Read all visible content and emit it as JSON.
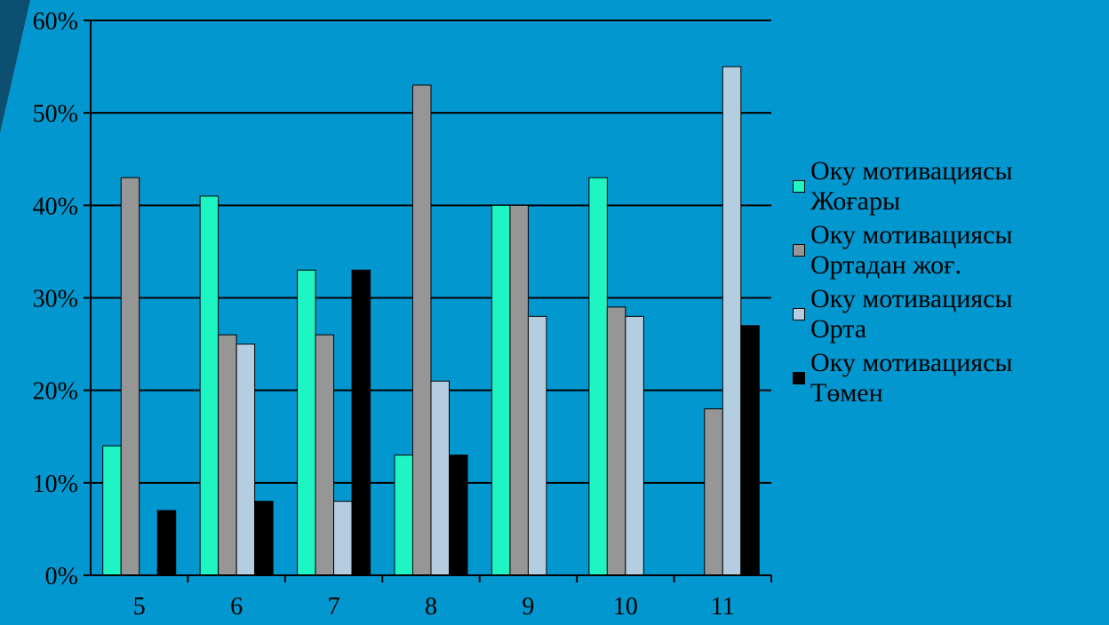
{
  "chart_data": {
    "type": "bar",
    "categories": [
      "5",
      "6",
      "7",
      "8",
      "9",
      "10",
      "11"
    ],
    "series": [
      {
        "name": "Оку мотивациясы Жоғары",
        "line1": "Оку мотивациясы",
        "line2": "Жоғары",
        "color": "#1ff5c3",
        "values": [
          14,
          41,
          33,
          13,
          40,
          43,
          0
        ]
      },
      {
        "name": "Оку мотивациясы Ортадан жоғ.",
        "line1": "Оку мотивациясы",
        "line2": "Ортадан жоғ.",
        "color": "#969696",
        "values": [
          43,
          26,
          26,
          53,
          40,
          29,
          18
        ]
      },
      {
        "name": "Оку мотивациясы Орта",
        "line1": "Оку мотивациясы",
        "line2": "Орта",
        "color": "#b4cde1",
        "values": [
          0,
          25,
          8,
          21,
          28,
          28,
          55
        ]
      },
      {
        "name": "Оку мотивациясы Төмен",
        "line1": "Оку мотивациясы",
        "line2": "Төмен",
        "color": "#000000",
        "values": [
          7,
          8,
          33,
          13,
          0,
          0,
          27
        ]
      }
    ],
    "yticks": [
      "0%",
      "10%",
      "20%",
      "30%",
      "40%",
      "50%",
      "60%"
    ],
    "ylim": [
      0,
      60
    ],
    "grid": true,
    "legend_position": "right"
  }
}
